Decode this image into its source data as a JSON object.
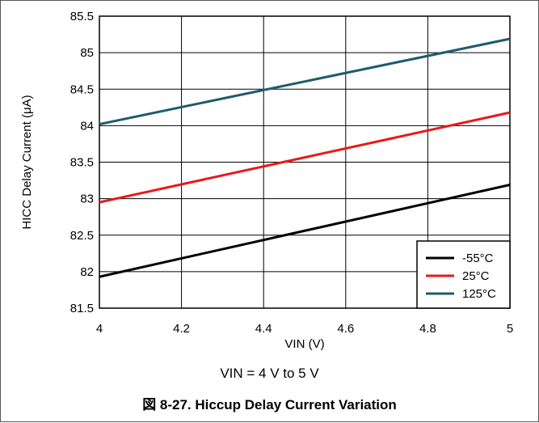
{
  "chart_data": {
    "type": "line",
    "xlabel": "VIN (V)",
    "ylabel": "HICC Delay Current (μA)",
    "xlim": [
      4,
      5
    ],
    "ylim": [
      81.5,
      85.5
    ],
    "x_ticks": [
      4,
      4.2,
      4.4,
      4.6,
      4.8,
      5
    ],
    "x_tick_labels": [
      "4",
      "4.2",
      "4.4",
      "4.6",
      "4.8",
      "5"
    ],
    "y_ticks": [
      81.5,
      82,
      82.5,
      83,
      83.5,
      84,
      84.5,
      85,
      85.5
    ],
    "y_tick_labels": [
      "81.5",
      "82",
      "82.5",
      "83",
      "83.5",
      "84",
      "84.5",
      "85",
      "85.5"
    ],
    "grid": true,
    "legend_position": "bottom-right",
    "series": [
      {
        "name": "-55°C",
        "color": "#000000",
        "x": [
          4,
          5
        ],
        "values": [
          81.93,
          83.19
        ]
      },
      {
        "name": "25°C",
        "color": "#e8191c",
        "x": [
          4,
          5
        ],
        "values": [
          82.95,
          84.18
        ]
      },
      {
        "name": "125°C",
        "color": "#1f5a6e",
        "x": [
          4,
          5
        ],
        "values": [
          84.02,
          85.19
        ]
      }
    ]
  },
  "condition_note": "VIN = 4 V to 5 V",
  "caption": "図 8-27. Hiccup Delay Current Variation"
}
